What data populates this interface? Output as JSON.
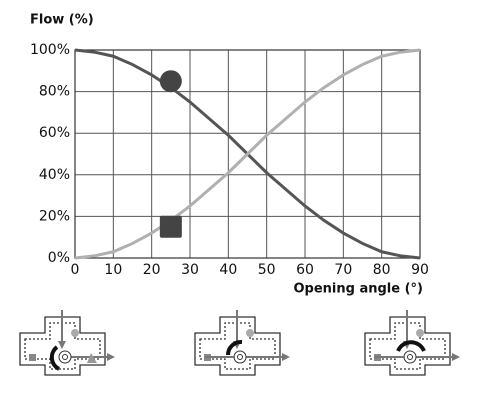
{
  "chart_data": {
    "type": "line",
    "y_label": "Flow (%)",
    "x_label": "Opening angle (°)",
    "x": [
      0,
      5,
      10,
      15,
      20,
      25,
      30,
      35,
      40,
      45,
      50,
      55,
      60,
      65,
      70,
      75,
      80,
      85,
      90
    ],
    "series": [
      {
        "color": "#555555",
        "values": [
          100,
          99,
          97,
          93,
          88,
          82,
          75,
          67,
          59,
          50,
          41,
          33,
          25,
          18,
          12,
          7,
          3,
          1,
          0
        ],
        "marker": {
          "shape": "circle",
          "x": 25,
          "y": 85
        }
      },
      {
        "color": "#b0b0b0",
        "values": [
          0,
          1,
          3,
          7,
          12,
          18,
          25,
          33,
          41,
          50,
          59,
          67,
          75,
          82,
          88,
          93,
          97,
          99,
          100
        ],
        "marker": {
          "shape": "square",
          "x": 25,
          "y": 15
        }
      }
    ],
    "xlim": [
      0,
      90
    ],
    "xticks": [
      0,
      10,
      20,
      30,
      40,
      50,
      60,
      70,
      80,
      90
    ],
    "ylim": [
      0,
      100
    ],
    "yticks": [
      {
        "value": 0,
        "label": "0%"
      },
      {
        "value": 20,
        "label": "20%"
      },
      {
        "value": 40,
        "label": "40%"
      },
      {
        "value": 60,
        "label": "60%"
      },
      {
        "value": 80,
        "label": "80%"
      },
      {
        "value": 100,
        "label": "100%"
      }
    ],
    "grid": true
  }
}
